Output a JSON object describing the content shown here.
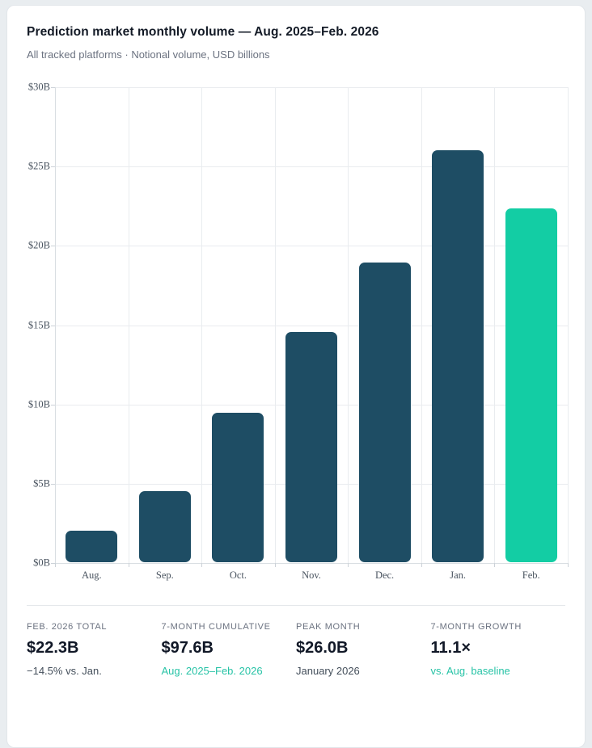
{
  "header": {
    "title": "Prediction market monthly volume — Aug. 2025–Feb. 2026",
    "subtitle": "All tracked platforms · Notional volume, USD billions"
  },
  "chart_data": {
    "type": "bar",
    "title": "Prediction market monthly volume — Aug. 2025–Feb. 2026",
    "xlabel": "",
    "ylabel": "Notional volume, USD billions",
    "categories": [
      "Aug.",
      "Sep.",
      "Oct.",
      "Nov.",
      "Dec.",
      "Jan.",
      "Feb."
    ],
    "values": [
      2.0,
      4.5,
      9.4,
      14.5,
      18.9,
      26.0,
      22.3
    ],
    "ylim": [
      0,
      30
    ],
    "ytick_step": 5,
    "ytick_labels": [
      "$0B",
      "$5B",
      "$10B",
      "$15B",
      "$20B",
      "$25B",
      "$30B"
    ],
    "grid": true,
    "legend": "none",
    "bar_color": "#1e4d64",
    "highlight_color": "#13cda4",
    "highlight_index": 6
  },
  "stats": [
    {
      "label": "FEB. 2026 TOTAL",
      "value": "$22.3B",
      "sub": "−14.5% vs. Jan.",
      "sub_style": "muted"
    },
    {
      "label": "7-MONTH CUMULATIVE",
      "value": "$97.6B",
      "sub": "Aug. 2025–Feb. 2026",
      "sub_style": "accent"
    },
    {
      "label": "PEAK MONTH",
      "value": "$26.0B",
      "sub": "January 2026",
      "sub_style": "muted"
    },
    {
      "label": "7-MONTH GROWTH",
      "value": "11.1×",
      "sub": "vs. Aug. baseline",
      "sub_style": "accent"
    }
  ],
  "colors": {
    "page_background": "#e9edf0",
    "card_background": "#ffffff",
    "card_border": "#e2e6ea",
    "bar_dark": "#1e4d64",
    "bar_highlight": "#13cda4",
    "accent_text": "#27c3a6",
    "muted_text": "#6b7280",
    "gridline": "#e9ecef"
  }
}
